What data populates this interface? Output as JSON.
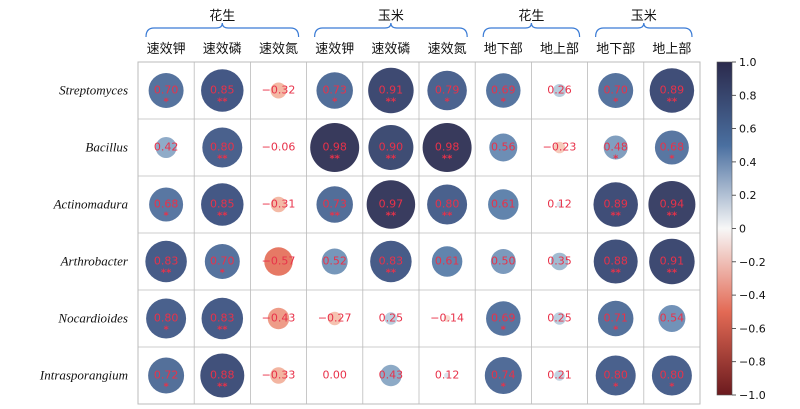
{
  "chart_data": {
    "type": "heatmap",
    "group_headers": [
      "花生",
      "玉米",
      "花生",
      "玉米"
    ],
    "columns": [
      "速效钾",
      "速效磷",
      "速效氮",
      "速效钾",
      "速效磷",
      "速效氮",
      "地下部",
      "地上部",
      "地下部",
      "地上部"
    ],
    "rows": [
      "Streptomyces",
      "Bacillus",
      "Actinomadura",
      "Arthrobacter",
      "Nocardioides",
      "Intrasporangium"
    ],
    "values": [
      [
        0.7,
        0.85,
        -0.32,
        0.73,
        0.91,
        0.79,
        0.69,
        0.26,
        0.7,
        0.89
      ],
      [
        0.42,
        0.8,
        -0.06,
        0.98,
        0.9,
        0.98,
        0.56,
        -0.23,
        0.48,
        0.68
      ],
      [
        0.68,
        0.85,
        -0.31,
        0.73,
        0.97,
        0.8,
        0.61,
        0.12,
        0.89,
        0.94
      ],
      [
        0.83,
        0.7,
        -0.57,
        0.52,
        0.83,
        0.61,
        0.5,
        0.35,
        0.88,
        0.91
      ],
      [
        0.8,
        0.83,
        -0.43,
        -0.27,
        0.25,
        -0.14,
        0.69,
        0.25,
        0.71,
        0.54
      ],
      [
        0.72,
        0.88,
        -0.33,
        0.0,
        0.43,
        0.12,
        0.74,
        0.21,
        0.8,
        0.8
      ]
    ],
    "value_labels": [
      [
        "0.70",
        "0.85",
        "−0.32",
        "0.73",
        "0.91",
        "0.79",
        "0.69",
        "0.26",
        "0.70",
        "0.89"
      ],
      [
        "0.42",
        "0.80",
        "−0.06",
        "0.98",
        "0.90",
        "0.98",
        "0.56",
        "−0.23",
        "0.48",
        "0.68"
      ],
      [
        "0.68",
        "0.85",
        "−0.31",
        "0.73",
        "0.97",
        "0.80",
        "0.61",
        "0.12",
        "0.89",
        "0.94"
      ],
      [
        "0.83",
        "0.70",
        "−0.57",
        "0.52",
        "0.83",
        "0.61",
        "0.50",
        "0.35",
        "0.88",
        "0.91"
      ],
      [
        "0.80",
        "0.83",
        "−0.43",
        "−0.27",
        "0.25",
        "−0.14",
        "0.69",
        "0.25",
        "0.71",
        "0.54"
      ],
      [
        "0.72",
        "0.88",
        "−0.33",
        "0.00",
        "0.43",
        "0.12",
        "0.74",
        "0.21",
        "0.80",
        "0.80"
      ]
    ],
    "significance": [
      [
        "*",
        "**",
        "",
        "*",
        "**",
        "*",
        "*",
        "",
        "*",
        "**"
      ],
      [
        "",
        "**",
        "",
        "**",
        "**",
        "**",
        "",
        "",
        "*",
        "*"
      ],
      [
        "*",
        "**",
        "",
        "**",
        "**",
        "**",
        "",
        "",
        "**",
        "**"
      ],
      [
        "**",
        "*",
        "",
        "",
        "**",
        "",
        "",
        "",
        "**",
        "**"
      ],
      [
        "*",
        "**",
        "",
        "",
        "",
        "",
        "*",
        "",
        "*",
        ""
      ],
      [
        "*",
        "**",
        "",
        "",
        "",
        "",
        "*",
        "",
        "*",
        "*"
      ]
    ],
    "colorbar": {
      "range": [
        -1.0,
        1.0
      ],
      "ticks": [
        "1.0",
        "0.8",
        "0.6",
        "0.4",
        "0.2",
        "0",
        "−0.2",
        "−0.4",
        "−0.6",
        "−0.8",
        "−1.0"
      ],
      "colors": {
        "negative_end": "#6b1a1e",
        "mid": "#f7f7f7",
        "positive_end": "#2b2a4c",
        "positive_mid": "#4a6fa0"
      }
    },
    "colors": {
      "value_text": "#e8324a",
      "bracket": "#3a7bd5",
      "grid": "#bbbbbb"
    }
  }
}
